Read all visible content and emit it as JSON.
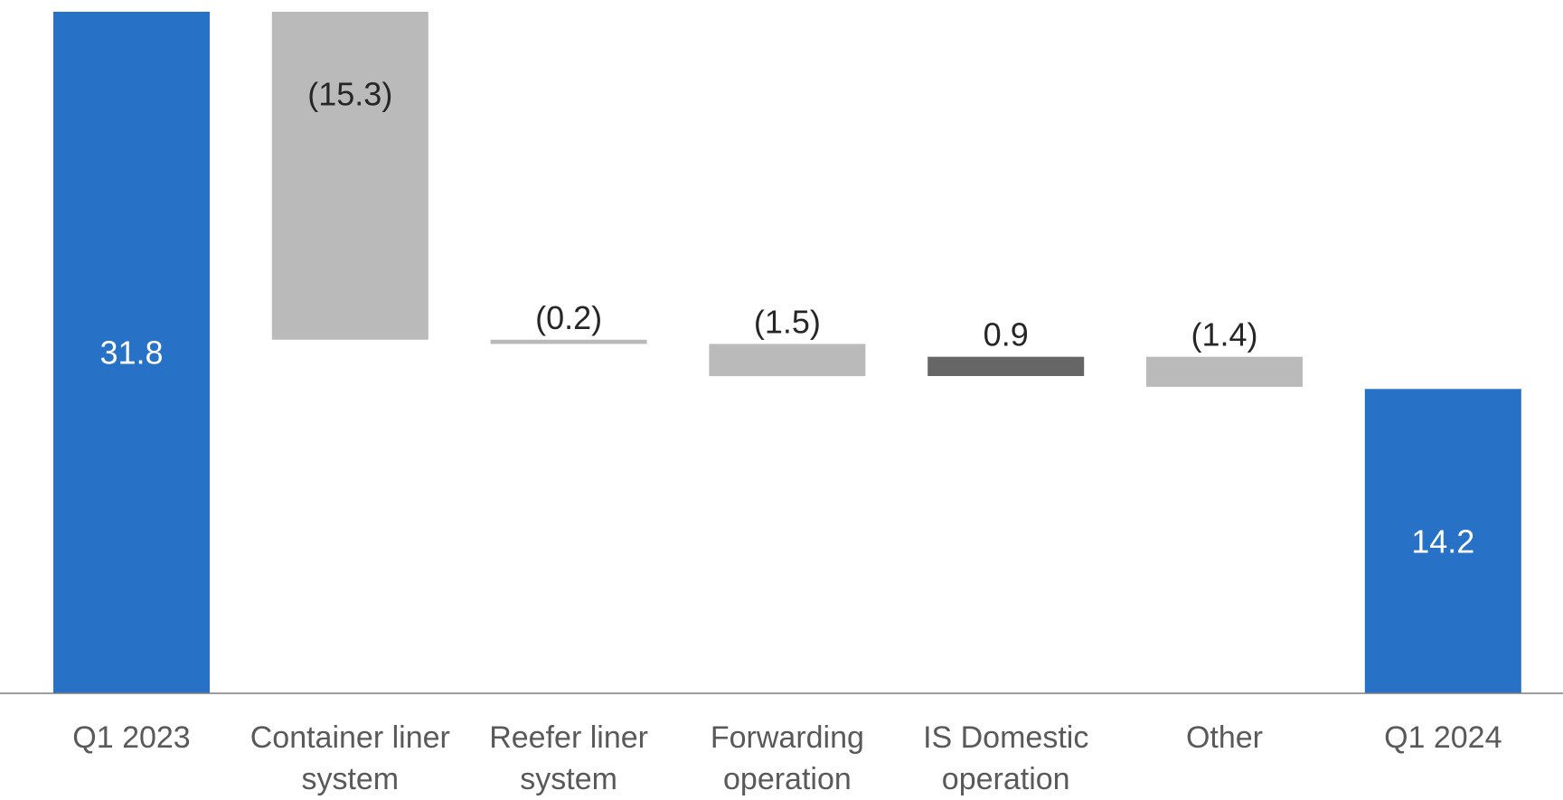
{
  "chart_data": {
    "type": "waterfall",
    "categories": [
      [
        "Q1 2023"
      ],
      [
        "Container liner",
        "system"
      ],
      [
        "Reefer liner",
        "system"
      ],
      [
        "Forwarding",
        "operation"
      ],
      [
        "IS Domestic",
        "operation"
      ],
      [
        "Other"
      ],
      [
        "Q1 2024"
      ]
    ],
    "steps": [
      {
        "kind": "total",
        "value": 31.8,
        "label": "31.8"
      },
      {
        "kind": "delta",
        "value": -15.3,
        "label": "(15.3)"
      },
      {
        "kind": "delta",
        "value": -0.2,
        "label": "(0.2)"
      },
      {
        "kind": "delta",
        "value": -1.5,
        "label": "(1.5)"
      },
      {
        "kind": "delta",
        "value": 0.9,
        "label": "0.9"
      },
      {
        "kind": "delta",
        "value": -1.4,
        "label": "(1.4)"
      },
      {
        "kind": "total",
        "value": 14.2,
        "label": "14.2"
      }
    ],
    "ylim": [
      0,
      31.8
    ],
    "grid": false,
    "legend": "none",
    "colors": {
      "total": "#2771C6",
      "decrease": "#BABABA",
      "increase": "#666666",
      "total_label": "#FFFFFF",
      "delta_label": "#262626",
      "axis": "#7F7F7F",
      "category_label": "#595959"
    }
  }
}
